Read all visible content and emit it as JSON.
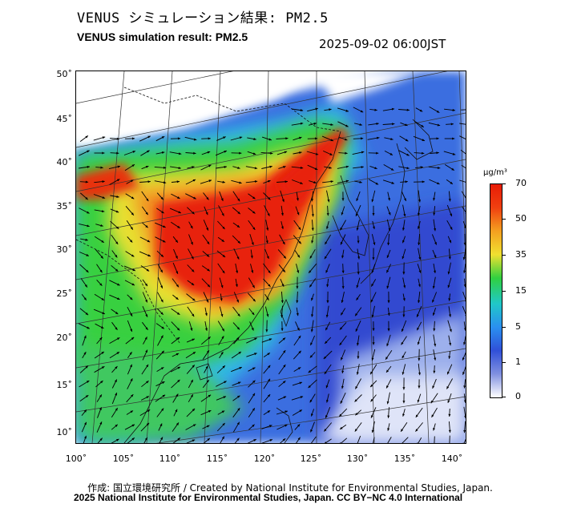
{
  "header": {
    "title_jp": "VENUS シミュレーション結果: PM2.5",
    "title_en": "VENUS simulation result: PM2.5",
    "timestamp": "2025-09-02 06:00JST"
  },
  "map": {
    "lat_labels": [
      "50˚",
      "45˚",
      "40˚",
      "35˚",
      "30˚",
      "25˚",
      "20˚",
      "15˚",
      "10˚"
    ],
    "lon_labels": [
      "100˚",
      "105˚",
      "110˚",
      "115˚",
      "120˚",
      "125˚",
      "130˚",
      "135˚",
      "140˚"
    ],
    "layers": [
      "PM2.5 concentration field",
      "wind vectors",
      "coastlines",
      "graticule"
    ]
  },
  "colorbar": {
    "unit": "μg/m³",
    "ticks": [
      "70",
      "50",
      "35",
      "15",
      "5",
      "1",
      "0"
    ],
    "colors": [
      "#e81c06",
      "#f04010",
      "#f4a020",
      "#f0e030",
      "#30d040",
      "#20c8c8",
      "#2a90f0",
      "#3050d8",
      "#8090e0",
      "#ffffff"
    ]
  },
  "credits": {
    "line1": "作成: 国立環境研究所 / Created by National Institute for Environmental Studies, Japan.",
    "line2": "2025 National Institute for Environmental Studies, Japan. CC BY−NC 4.0 International"
  }
}
